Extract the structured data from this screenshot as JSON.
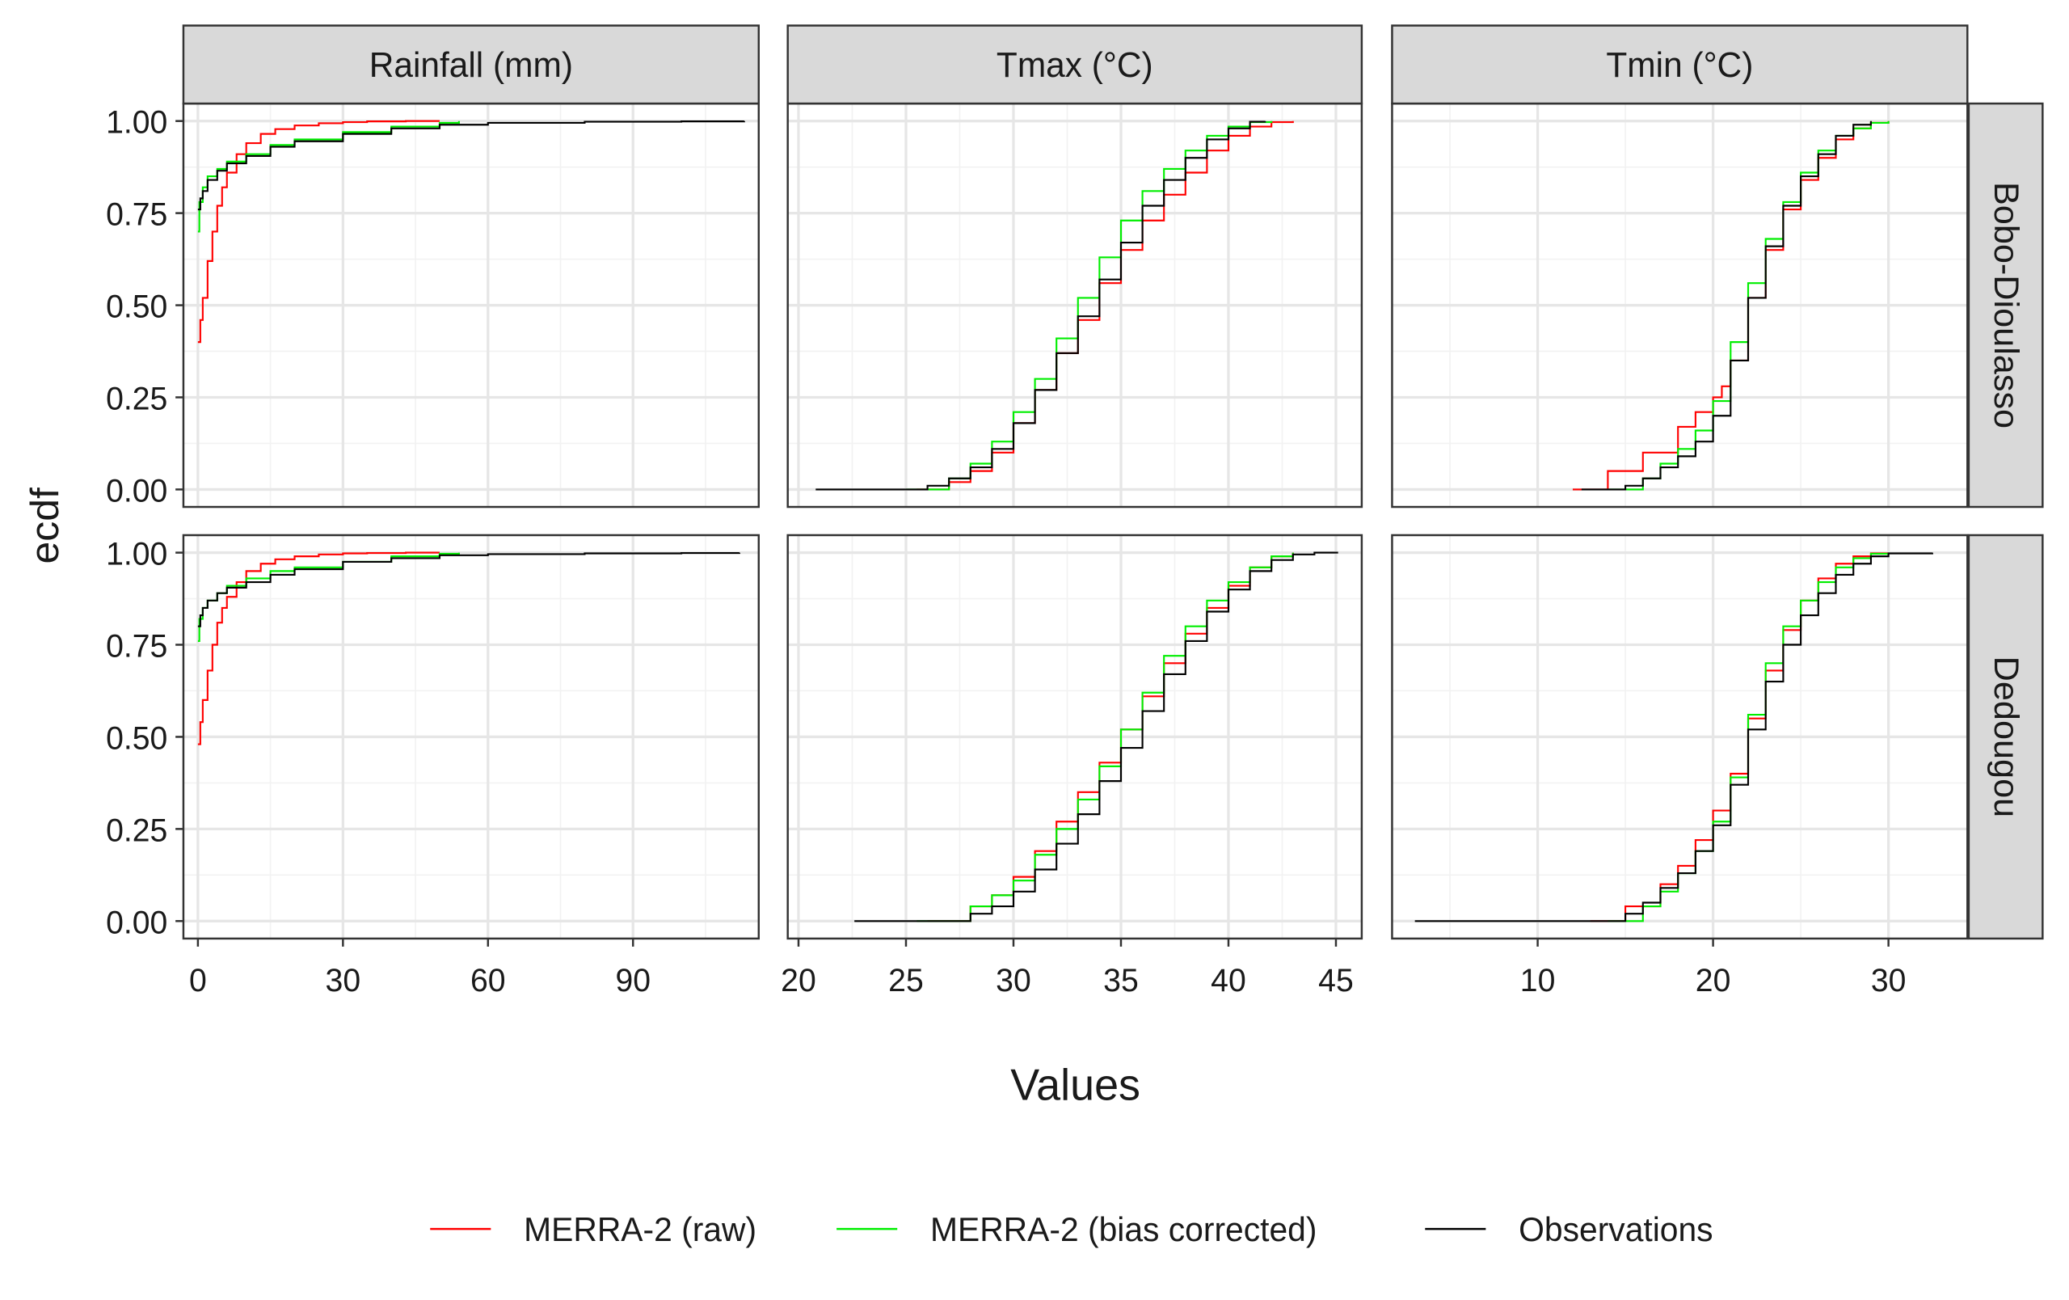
{
  "chart_data": {
    "type": "line",
    "subtype": "ecdf-faceted-grid",
    "xlabel": "Values",
    "ylabel": "ecdf",
    "y_ticks": [
      "0.00",
      "0.25",
      "0.50",
      "0.75",
      "1.00"
    ],
    "ylim": [
      0,
      1
    ],
    "grid": true,
    "legend_position": "bottom",
    "columns": [
      {
        "label": "Rainfall (mm)",
        "xlim": [
          -3,
          116
        ],
        "ticks": [
          0,
          30,
          60,
          90
        ],
        "tick_labels": [
          "0",
          "30",
          "60",
          "90"
        ]
      },
      {
        "label": "Tmax (°C)",
        "xlim": [
          19.5,
          46.2
        ],
        "ticks": [
          20,
          25,
          30,
          35,
          40,
          45
        ],
        "tick_labels": [
          "20",
          "25",
          "30",
          "35",
          "40",
          "45"
        ]
      },
      {
        "label": "Tmin (°C)",
        "xlim": [
          1.7,
          34.5
        ],
        "ticks": [
          10,
          20,
          30
        ],
        "tick_labels": [
          "10",
          "20",
          "30"
        ]
      }
    ],
    "rows": [
      {
        "label": "Bobo-Dioulasso"
      },
      {
        "label": "Dedougou"
      }
    ],
    "series": [
      {
        "name": "MERRA-2 (raw)",
        "color": "#ff0000"
      },
      {
        "name": "MERRA-2 (bias corrected)",
        "color": "#00ee00"
      },
      {
        "name": "Observations",
        "color": "#000000"
      }
    ],
    "panels": [
      {
        "row": 0,
        "col": 0,
        "curves": [
          {
            "x": [
              0,
              0.5,
              1,
              2,
              3,
              4,
              5,
              6,
              8,
              10,
              13,
              16,
              20,
              25,
              30,
              35,
              43,
              50
            ],
            "y": [
              0.4,
              0.46,
              0.52,
              0.62,
              0.7,
              0.77,
              0.82,
              0.86,
              0.91,
              0.94,
              0.965,
              0.978,
              0.988,
              0.994,
              0.997,
              0.999,
              1.0,
              1.0
            ]
          },
          {
            "x": [
              0,
              0.3,
              1,
              2,
              4,
              6,
              10,
              15,
              20,
              30,
              40,
              50,
              54
            ],
            "y": [
              0.7,
              0.78,
              0.82,
              0.85,
              0.87,
              0.89,
              0.91,
              0.935,
              0.95,
              0.97,
              0.985,
              0.995,
              1.0
            ]
          },
          {
            "x": [
              0,
              0.5,
              1,
              2,
              4,
              6,
              10,
              15,
              20,
              30,
              40,
              50,
              60,
              80,
              100,
              113
            ],
            "y": [
              0.76,
              0.79,
              0.81,
              0.84,
              0.865,
              0.885,
              0.905,
              0.93,
              0.945,
              0.965,
              0.98,
              0.99,
              0.995,
              0.998,
              0.999,
              1.0
            ]
          }
        ]
      },
      {
        "row": 0,
        "col": 1,
        "curves": [
          {
            "x": [
              25.5,
              27,
              28,
              29,
              30,
              31,
              32,
              33,
              34,
              35,
              36,
              37,
              38,
              39,
              40,
              41,
              42,
              43
            ],
            "y": [
              0.0,
              0.02,
              0.05,
              0.1,
              0.18,
              0.27,
              0.37,
              0.46,
              0.56,
              0.65,
              0.73,
              0.8,
              0.86,
              0.92,
              0.96,
              0.985,
              0.997,
              1.0
            ]
          },
          {
            "x": [
              25,
              27,
              28,
              29,
              30,
              31,
              32,
              33,
              34,
              35,
              36,
              37,
              38,
              39,
              40,
              41,
              42
            ],
            "y": [
              0.0,
              0.03,
              0.07,
              0.13,
              0.21,
              0.3,
              0.41,
              0.52,
              0.63,
              0.73,
              0.81,
              0.87,
              0.92,
              0.96,
              0.985,
              0.997,
              1.0
            ]
          },
          {
            "x": [
              20.8,
              25,
              26,
              27,
              28,
              29,
              30,
              31,
              32,
              33,
              34,
              35,
              36,
              37,
              38,
              39,
              40,
              41,
              41.7
            ],
            "y": [
              0.0,
              0.0,
              0.01,
              0.03,
              0.06,
              0.11,
              0.18,
              0.27,
              0.37,
              0.47,
              0.57,
              0.67,
              0.77,
              0.84,
              0.9,
              0.95,
              0.98,
              0.998,
              1.0
            ]
          }
        ]
      },
      {
        "row": 0,
        "col": 2,
        "curves": [
          {
            "x": [
              12,
              14,
              16,
              18,
              19,
              20,
              20.5,
              21,
              22,
              23,
              24,
              25,
              26,
              27,
              28,
              29,
              30
            ],
            "y": [
              0.0,
              0.05,
              0.1,
              0.17,
              0.21,
              0.25,
              0.28,
              0.35,
              0.52,
              0.65,
              0.76,
              0.84,
              0.9,
              0.95,
              0.98,
              0.995,
              1.0
            ]
          },
          {
            "x": [
              14,
              16,
              17,
              18,
              19,
              20,
              21,
              22,
              23,
              24,
              25,
              26,
              27,
              28,
              29,
              30
            ],
            "y": [
              0.0,
              0.03,
              0.07,
              0.11,
              0.16,
              0.24,
              0.4,
              0.56,
              0.68,
              0.78,
              0.86,
              0.92,
              0.96,
              0.98,
              0.995,
              1.0
            ]
          },
          {
            "x": [
              12.5,
              15,
              16,
              17,
              18,
              19,
              20,
              21,
              22,
              23,
              24,
              25,
              26,
              27,
              28,
              29
            ],
            "y": [
              0.0,
              0.01,
              0.03,
              0.06,
              0.09,
              0.13,
              0.2,
              0.35,
              0.52,
              0.66,
              0.77,
              0.85,
              0.91,
              0.96,
              0.99,
              1.0
            ]
          }
        ]
      },
      {
        "row": 1,
        "col": 0,
        "curves": [
          {
            "x": [
              0,
              0.5,
              1,
              2,
              3,
              4,
              5,
              6,
              8,
              10,
              13,
              16,
              20,
              25,
              30,
              35,
              43,
              50
            ],
            "y": [
              0.48,
              0.54,
              0.6,
              0.68,
              0.75,
              0.81,
              0.85,
              0.88,
              0.92,
              0.95,
              0.97,
              0.982,
              0.99,
              0.995,
              0.998,
              0.999,
              1.0,
              1.0
            ]
          },
          {
            "x": [
              0,
              0.3,
              1,
              2,
              4,
              6,
              10,
              15,
              20,
              30,
              40,
              50,
              54
            ],
            "y": [
              0.76,
              0.82,
              0.85,
              0.87,
              0.89,
              0.91,
              0.93,
              0.95,
              0.96,
              0.975,
              0.99,
              0.997,
              1.0
            ]
          },
          {
            "x": [
              0,
              0.5,
              1,
              2,
              4,
              6,
              10,
              15,
              20,
              30,
              40,
              50,
              60,
              80,
              100,
              112
            ],
            "y": [
              0.8,
              0.83,
              0.85,
              0.87,
              0.89,
              0.905,
              0.92,
              0.94,
              0.955,
              0.975,
              0.985,
              0.993,
              0.996,
              0.998,
              0.999,
              1.0
            ]
          }
        ]
      },
      {
        "row": 1,
        "col": 1,
        "curves": [
          {
            "x": [
              26,
              28,
              29,
              30,
              31,
              32,
              33,
              34,
              35,
              36,
              37,
              38,
              39,
              40,
              41,
              42,
              43
            ],
            "y": [
              0.0,
              0.04,
              0.07,
              0.12,
              0.19,
              0.27,
              0.35,
              0.43,
              0.52,
              0.61,
              0.7,
              0.78,
              0.85,
              0.91,
              0.96,
              0.99,
              1.0
            ]
          },
          {
            "x": [
              25.5,
              28,
              29,
              30,
              31,
              32,
              33,
              34,
              35,
              36,
              37,
              38,
              39,
              40,
              41,
              42,
              43
            ],
            "y": [
              0.0,
              0.04,
              0.07,
              0.11,
              0.18,
              0.25,
              0.33,
              0.42,
              0.52,
              0.62,
              0.72,
              0.8,
              0.87,
              0.92,
              0.96,
              0.99,
              1.0
            ]
          },
          {
            "x": [
              22.6,
              26,
              28,
              29,
              30,
              31,
              32,
              33,
              34,
              35,
              36,
              37,
              38,
              39,
              40,
              41,
              42,
              43,
              44,
              45.1
            ],
            "y": [
              0.0,
              0.0,
              0.02,
              0.04,
              0.08,
              0.14,
              0.21,
              0.29,
              0.38,
              0.47,
              0.57,
              0.67,
              0.76,
              0.84,
              0.9,
              0.95,
              0.98,
              0.995,
              1.0,
              1.0
            ]
          }
        ]
      },
      {
        "row": 1,
        "col": 2,
        "curves": [
          {
            "x": [
              13,
              15,
              17,
              18,
              19,
              20,
              21,
              22,
              23,
              24,
              25,
              26,
              27,
              28,
              29,
              30
            ],
            "y": [
              0.0,
              0.04,
              0.1,
              0.15,
              0.22,
              0.3,
              0.4,
              0.55,
              0.68,
              0.79,
              0.87,
              0.93,
              0.97,
              0.99,
              0.998,
              1.0
            ]
          },
          {
            "x": [
              14,
              16,
              17,
              18,
              19,
              20,
              21,
              22,
              23,
              24,
              25,
              26,
              27,
              28,
              29,
              30
            ],
            "y": [
              0.0,
              0.04,
              0.08,
              0.13,
              0.19,
              0.27,
              0.39,
              0.56,
              0.7,
              0.8,
              0.87,
              0.92,
              0.96,
              0.985,
              0.997,
              1.0
            ]
          },
          {
            "x": [
              3,
              13,
              15,
              16,
              17,
              18,
              19,
              20,
              21,
              22,
              23,
              24,
              25,
              26,
              27,
              28,
              29,
              30,
              32.5
            ],
            "y": [
              0.0,
              0.0,
              0.02,
              0.05,
              0.09,
              0.13,
              0.19,
              0.26,
              0.37,
              0.52,
              0.65,
              0.75,
              0.83,
              0.89,
              0.94,
              0.97,
              0.99,
              0.998,
              1.0
            ]
          }
        ]
      }
    ]
  }
}
